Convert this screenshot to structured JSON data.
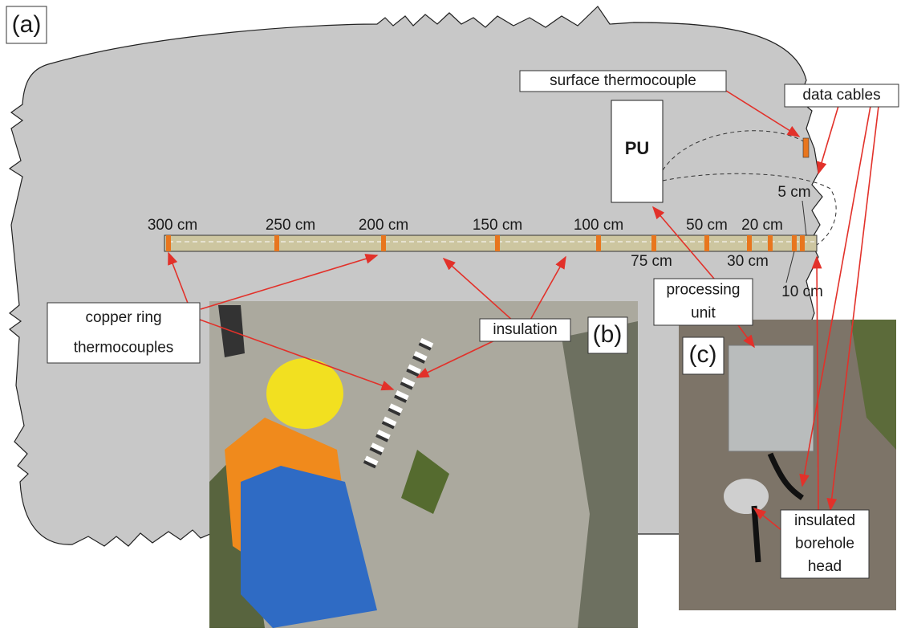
{
  "panels": {
    "a": "(a)",
    "b": "(b)",
    "c": "(c)"
  },
  "processing_unit": "PU",
  "callouts": {
    "surface_thermocouple": [
      "surface thermocouple"
    ],
    "data_cables": [
      "data cables"
    ],
    "processing_unit": [
      "processing",
      "unit"
    ],
    "insulation": [
      "insulation"
    ],
    "copper_ring_thermocouples": [
      "copper ring",
      "thermocouples"
    ],
    "insulated_borehole_head": [
      "insulated",
      "borehole",
      "head"
    ]
  },
  "depth_labels": [
    "300 cm",
    "250 cm",
    "200 cm",
    "150 cm",
    "100 cm",
    "75 cm",
    "50 cm",
    "30 cm",
    "20 cm",
    "10 cm",
    "5 cm"
  ]
}
